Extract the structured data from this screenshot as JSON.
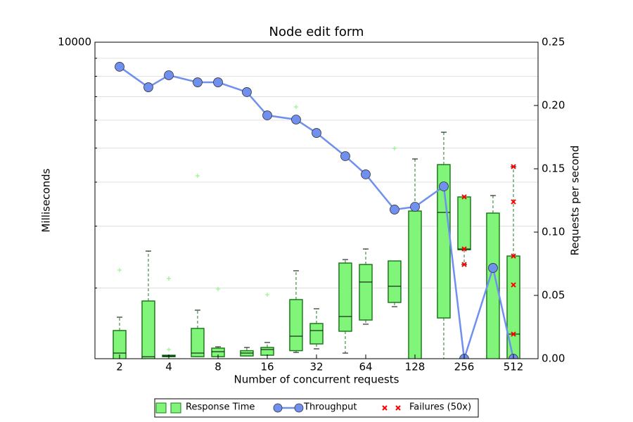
{
  "chart_data": {
    "type": "box",
    "title": "Node edit form",
    "x_label": "Number of concurrent requests",
    "y_label": "Milliseconds",
    "y2_label": "Requests per second",
    "xscale": "log2",
    "xlim": [
      1.414,
      724.1
    ],
    "xticks": [
      2,
      4,
      8,
      16,
      32,
      64,
      128,
      256,
      512
    ],
    "yscale": "log",
    "ylim": [
      1259,
      10000
    ],
    "yticks": [
      10000
    ],
    "y_minor_ticks": [
      2000,
      3000,
      4000,
      5000,
      6000,
      7000,
      8000,
      9000
    ],
    "y2lim": [
      0,
      0.25
    ],
    "y2ticks": [
      {
        "value": 0,
        "label": "0.00"
      },
      {
        "value": 0.05,
        "label": "0.05"
      },
      {
        "value": 0.1,
        "label": "0.10"
      },
      {
        "value": 0.15,
        "label": "0.15"
      },
      {
        "value": 0.2,
        "label": "0.20"
      },
      {
        "value": 0.25,
        "label": "0.25"
      }
    ],
    "grid": true,
    "legend": "bottom",
    "series": [
      {
        "name": "Response Time",
        "type": "box",
        "color": "#80f57a",
        "edge_color": "#1d7a1d",
        "x": [
          2,
          3,
          4,
          6,
          8,
          12,
          16,
          24,
          32,
          48,
          64,
          96,
          128,
          192,
          256,
          384,
          512
        ],
        "whisker_low": [
          1100,
          1100,
          1276,
          1276,
          1276,
          1282,
          1288,
          1312,
          1343,
          1306,
          1578,
          1770,
          1000,
          1100,
          2333,
          1100,
          1100
        ],
        "q1": [
          1200,
          1200,
          1276,
          1276,
          1276,
          1282,
          1288,
          1327,
          1387,
          1507,
          1622,
          1820,
          1150,
          1644,
          2570,
          1150,
          1200
        ],
        "median": [
          1306,
          1276,
          1282,
          1306,
          1318,
          1306,
          1337,
          1459,
          1514,
          1660,
          2080,
          2023,
          1220,
          3281,
          2582,
          1220,
          1479
        ],
        "q3": [
          1514,
          1837,
          1288,
          1535,
          1349,
          1327,
          1355,
          1854,
          1585,
          2355,
          2333,
          2388,
          3311,
          4487,
          3631,
          3266,
          2466
        ],
        "whisker_high": [
          1652,
          2547,
          1288,
          1730,
          1361,
          1355,
          1400,
          2239,
          1746,
          2410,
          2582,
          2388,
          4656,
          5546,
          3631,
          3664,
          4426
        ],
        "outliers": [
          [
            2249
          ],
          [],
          [
            1337,
            2128
          ],
          [
            4169
          ],
          [
            1986
          ],
          [],
          [
            1914
          ],
          [
            6546
          ],
          [],
          [],
          [],
          [
            4989
          ],
          [],
          [],
          [],
          [],
          []
        ]
      },
      {
        "name": "Throughput",
        "type": "line",
        "axis": "y2",
        "color": "#7090f0",
        "x": [
          2,
          3,
          4,
          6,
          8,
          12,
          16,
          24,
          32,
          48,
          64,
          96,
          128,
          192,
          256,
          384,
          512
        ],
        "values": [
          0.2306,
          0.2144,
          0.2239,
          0.2183,
          0.2183,
          0.2106,
          0.1922,
          0.1889,
          0.1783,
          0.16,
          0.1456,
          0.1178,
          0.12,
          0.1361,
          0,
          0.0717,
          0
        ]
      },
      {
        "name": "Failures (50x)",
        "type": "scatter",
        "axis": "y2",
        "color": "#ff0000",
        "x": [
          256,
          256,
          256,
          512,
          512,
          512,
          512,
          512
        ],
        "values": [
          0.1278,
          0.0867,
          0.0744,
          0.1517,
          0.1239,
          0.0811,
          0.0583,
          0.0194
        ]
      }
    ]
  }
}
